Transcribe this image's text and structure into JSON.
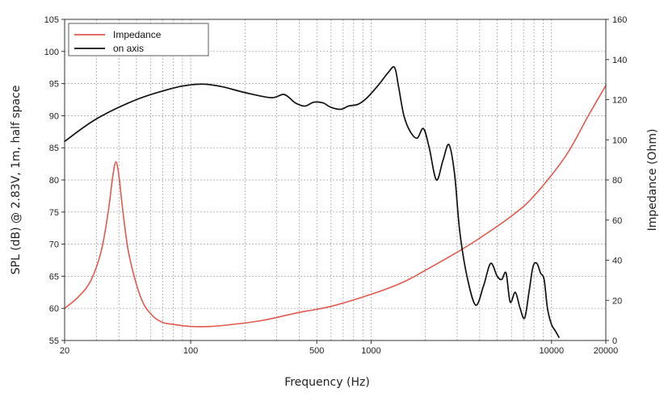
{
  "chart_data": {
    "type": "line",
    "xlabel": "Frequency (Hz)",
    "ylabel": "SPL (dB) @ 2.83V, 1m, half space",
    "y2label": "Impedance (Ohm)",
    "x_scale": "log",
    "xlim": [
      20,
      20000
    ],
    "ylim": [
      55,
      105
    ],
    "y2lim": [
      0,
      160
    ],
    "x_ticks": [
      20,
      100,
      500,
      1000,
      10000,
      20000
    ],
    "x_tick_labels": [
      "20",
      "100",
      "500",
      "1000",
      "10000",
      "20000"
    ],
    "y_ticks": [
      55,
      60,
      65,
      70,
      75,
      80,
      85,
      90,
      95,
      100,
      105
    ],
    "y_tick_labels": [
      "55",
      "60",
      "65",
      "70",
      "75",
      "80",
      "85",
      "90",
      "95",
      "100",
      "105"
    ],
    "y2_ticks": [
      0,
      20,
      40,
      60,
      80,
      100,
      120,
      140,
      160
    ],
    "y2_tick_labels": [
      "0",
      "20",
      "40",
      "60",
      "80",
      "100",
      "120",
      "140",
      "160"
    ],
    "grid": true,
    "legend_position": "top-left",
    "series": [
      {
        "name": "Impedance",
        "axis": "right",
        "color": "#e05a50",
        "x": [
          20,
          24,
          28,
          32,
          35,
          37,
          38.5,
          40,
          42,
          45,
          50,
          55,
          62,
          70,
          80,
          100,
          130,
          170,
          250,
          400,
          600,
          1000,
          1500,
          2000,
          3000,
          4000,
          6000,
          8000,
          12000,
          16000,
          20000
        ],
        "y": [
          16,
          22,
          30,
          45,
          65,
          82,
          89,
          82,
          65,
          45,
          28,
          18,
          12,
          9,
          8,
          7,
          7,
          8,
          10,
          14,
          17,
          23,
          29,
          35,
          44,
          51,
          62,
          72,
          92,
          112,
          127
        ]
      },
      {
        "name": "on axis",
        "axis": "left",
        "color": "#111111",
        "x": [
          20,
          30,
          50,
          80,
          100,
          120,
          150,
          200,
          280,
          330,
          380,
          430,
          480,
          540,
          600,
          680,
          750,
          850,
          950,
          1100,
          1250,
          1350,
          1420,
          1520,
          1650,
          1800,
          1950,
          2100,
          2300,
          2500,
          2700,
          2900,
          3100,
          3400,
          3800,
          4200,
          4600,
          5000,
          5300,
          5600,
          5900,
          6300,
          6700,
          7100,
          7500,
          7900,
          8300,
          8700,
          9100,
          9500,
          10000,
          10500,
          11000
        ],
        "y": [
          86,
          89.5,
          92.5,
          94.3,
          94.8,
          94.9,
          94.5,
          93.6,
          92.8,
          93.3,
          92,
          91.5,
          92.1,
          92,
          91.3,
          91,
          91.5,
          91.8,
          92.8,
          94.8,
          96.8,
          97.5,
          94.5,
          90,
          87.5,
          86.5,
          88,
          85,
          80,
          83,
          85.5,
          81,
          72,
          65,
          60.5,
          63.5,
          67,
          65,
          64.5,
          65.5,
          61,
          62.5,
          60,
          58.5,
          62.5,
          66.5,
          67,
          65.5,
          64.5,
          60,
          57.5,
          56.5,
          55.5
        ]
      }
    ]
  }
}
